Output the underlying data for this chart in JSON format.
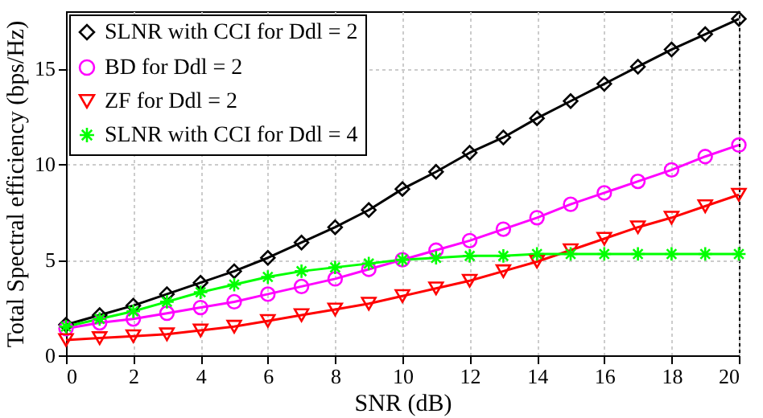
{
  "chart_data": {
    "type": "line",
    "xlabel": "SNR (dB)",
    "ylabel": "Total Spectral efficiency (bps/Hz)",
    "x": [
      0,
      1,
      2,
      3,
      4,
      5,
      6,
      7,
      8,
      9,
      10,
      11,
      12,
      13,
      14,
      15,
      16,
      17,
      18,
      19,
      20
    ],
    "series": [
      {
        "name": "SLNR with CCI for Ddl = 2",
        "color": "#000000",
        "marker": "diamond",
        "values": [
          1.6,
          2.1,
          2.6,
          3.2,
          3.8,
          4.4,
          5.1,
          5.9,
          6.7,
          7.6,
          8.7,
          9.6,
          10.6,
          11.4,
          12.4,
          13.3,
          14.2,
          15.1,
          16.0,
          16.8,
          17.6
        ]
      },
      {
        "name": "BD for Ddl = 2",
        "color": "#ff00ff",
        "marker": "circle",
        "values": [
          1.4,
          1.7,
          1.9,
          2.2,
          2.5,
          2.8,
          3.2,
          3.6,
          4.0,
          4.5,
          5.0,
          5.5,
          6.0,
          6.6,
          7.2,
          7.9,
          8.5,
          9.1,
          9.7,
          10.4,
          11.0
        ]
      },
      {
        "name": "ZF for Ddl = 2",
        "color": "#ff0000",
        "marker": "triangle",
        "values": [
          0.8,
          0.9,
          1.0,
          1.1,
          1.3,
          1.5,
          1.8,
          2.1,
          2.4,
          2.7,
          3.1,
          3.5,
          3.9,
          4.4,
          4.9,
          5.5,
          6.1,
          6.7,
          7.2,
          7.8,
          8.4
        ]
      },
      {
        "name": "SLNR with CCI for Ddl = 4",
        "color": "#00ff00",
        "marker": "cross",
        "values": [
          1.5,
          1.9,
          2.3,
          2.8,
          3.3,
          3.7,
          4.1,
          4.4,
          4.6,
          4.8,
          5.0,
          5.1,
          5.2,
          5.2,
          5.3,
          5.3,
          5.3,
          5.3,
          5.3,
          5.3,
          5.3
        ]
      }
    ],
    "xlim": [
      0,
      20
    ],
    "xticks": [
      0,
      2,
      4,
      6,
      8,
      10,
      12,
      14,
      16,
      18,
      20
    ],
    "ylim": [
      0,
      18
    ],
    "yticks": [
      0,
      5,
      10,
      15
    ],
    "grid": true,
    "legend": "top left",
    "line_style": "solid"
  }
}
